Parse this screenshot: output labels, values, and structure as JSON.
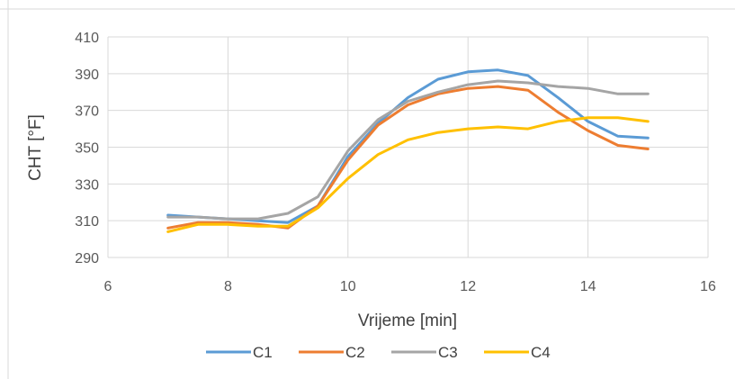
{
  "chart_data": {
    "type": "line",
    "title": "",
    "xlabel": "Vrijeme [min]",
    "ylabel": "CHT [°F]",
    "xlim": [
      6,
      16
    ],
    "ylim": [
      290,
      410
    ],
    "xticks": [
      6,
      8,
      10,
      12,
      14,
      16
    ],
    "yticks": [
      290,
      310,
      330,
      350,
      370,
      390,
      410
    ],
    "grid": true,
    "legend_position": "bottom",
    "x": [
      7,
      7.5,
      8,
      8.5,
      9,
      9.5,
      10,
      10.5,
      11,
      11.5,
      12,
      12.5,
      13,
      13.5,
      14,
      14.5,
      15
    ],
    "series": [
      {
        "name": "C1",
        "color": "#5B9BD5",
        "values": [
          313,
          312,
          311,
          310,
          309,
          318,
          345,
          363,
          377,
          387,
          391,
          392,
          389,
          377,
          364,
          356,
          355
        ]
      },
      {
        "name": "C2",
        "color": "#ED7D31",
        "values": [
          306,
          309,
          309,
          308,
          306,
          318,
          343,
          362,
          373,
          379,
          382,
          383,
          381,
          369,
          359,
          351,
          349
        ]
      },
      {
        "name": "C3",
        "color": "#A5A5A5",
        "values": [
          312,
          312,
          311,
          311,
          314,
          323,
          348,
          365,
          375,
          380,
          384,
          386,
          385,
          383,
          382,
          379,
          379
        ]
      },
      {
        "name": "C4",
        "color": "#FFC000",
        "values": [
          304,
          308,
          308,
          307,
          307,
          317,
          333,
          346,
          354,
          358,
          360,
          361,
          360,
          364,
          366,
          366,
          364
        ]
      }
    ]
  }
}
